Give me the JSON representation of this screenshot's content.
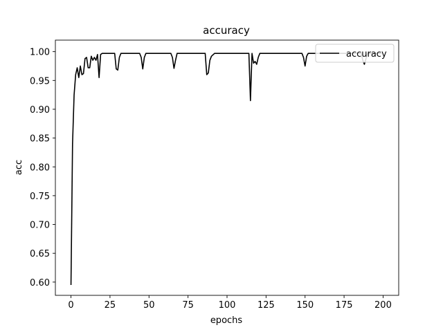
{
  "chart_data": {
    "type": "line",
    "title": "accuracy",
    "xlabel": "epochs",
    "ylabel": "acc",
    "xlim": [
      -10,
      210
    ],
    "ylim": [
      0.577,
      1.02
    ],
    "xticks": [
      0,
      25,
      50,
      75,
      100,
      125,
      150,
      175,
      200
    ],
    "yticks": [
      0.6,
      0.65,
      0.7,
      0.75,
      0.8,
      0.85,
      0.9,
      0.95,
      1.0
    ],
    "ytick_labels": [
      "0.60",
      "0.65",
      "0.70",
      "0.75",
      "0.80",
      "0.85",
      "0.90",
      "0.95",
      "1.00"
    ],
    "legend_position": "top-right",
    "grid": false,
    "series": [
      {
        "name": "accuracy",
        "color": "#000000",
        "x": [
          0,
          1,
          2,
          3,
          4,
          5,
          6,
          7,
          8,
          9,
          10,
          11,
          12,
          13,
          14,
          15,
          16,
          17,
          18,
          19,
          20,
          22,
          24,
          26,
          28,
          29,
          30,
          31,
          32,
          34,
          36,
          38,
          40,
          42,
          44,
          45,
          46,
          47,
          48,
          50,
          52,
          54,
          56,
          58,
          60,
          62,
          64,
          65,
          66,
          67,
          68,
          70,
          72,
          74,
          76,
          78,
          80,
          82,
          84,
          85,
          86,
          87,
          88,
          89,
          90,
          92,
          94,
          96,
          98,
          100,
          102,
          104,
          106,
          108,
          110,
          112,
          114,
          115,
          116,
          117,
          118,
          119,
          120,
          121,
          122,
          124,
          126,
          128,
          130,
          132,
          134,
          136,
          138,
          140,
          142,
          144,
          146,
          148,
          149,
          150,
          151,
          152,
          154,
          156,
          158,
          160,
          162,
          164,
          166,
          168,
          170,
          172,
          174,
          176,
          178,
          180,
          182,
          184,
          186,
          187,
          188,
          190,
          192,
          194,
          196,
          198,
          199
        ],
        "y": [
          0.595,
          0.84,
          0.925,
          0.96,
          0.972,
          0.955,
          0.975,
          0.96,
          0.962,
          0.988,
          0.99,
          0.972,
          0.972,
          0.992,
          0.985,
          0.99,
          0.985,
          0.995,
          0.955,
          0.995,
          0.997,
          0.997,
          0.997,
          0.997,
          0.997,
          0.97,
          0.968,
          0.99,
          0.997,
          0.997,
          0.997,
          0.997,
          0.997,
          0.997,
          0.997,
          0.99,
          0.97,
          0.99,
          0.997,
          0.997,
          0.997,
          0.997,
          0.997,
          0.997,
          0.997,
          0.997,
          0.997,
          0.99,
          0.971,
          0.985,
          0.997,
          0.997,
          0.997,
          0.997,
          0.997,
          0.997,
          0.997,
          0.997,
          0.997,
          0.997,
          0.997,
          0.96,
          0.963,
          0.985,
          0.992,
          0.997,
          0.997,
          0.997,
          0.997,
          0.997,
          0.997,
          0.997,
          0.997,
          0.997,
          0.997,
          0.997,
          0.997,
          0.915,
          0.997,
          0.98,
          0.983,
          0.978,
          0.99,
          0.997,
          0.997,
          0.997,
          0.997,
          0.997,
          0.997,
          0.997,
          0.997,
          0.997,
          0.997,
          0.997,
          0.997,
          0.997,
          0.997,
          0.997,
          0.99,
          0.975,
          0.992,
          0.997,
          0.997,
          0.997,
          0.997,
          0.997,
          0.997,
          0.997,
          0.997,
          0.997,
          0.997,
          0.997,
          0.997,
          0.997,
          0.997,
          0.997,
          0.997,
          0.997,
          0.997,
          0.985,
          0.978,
          0.997,
          0.997,
          0.997,
          0.997,
          0.997,
          0.997
        ]
      }
    ]
  }
}
